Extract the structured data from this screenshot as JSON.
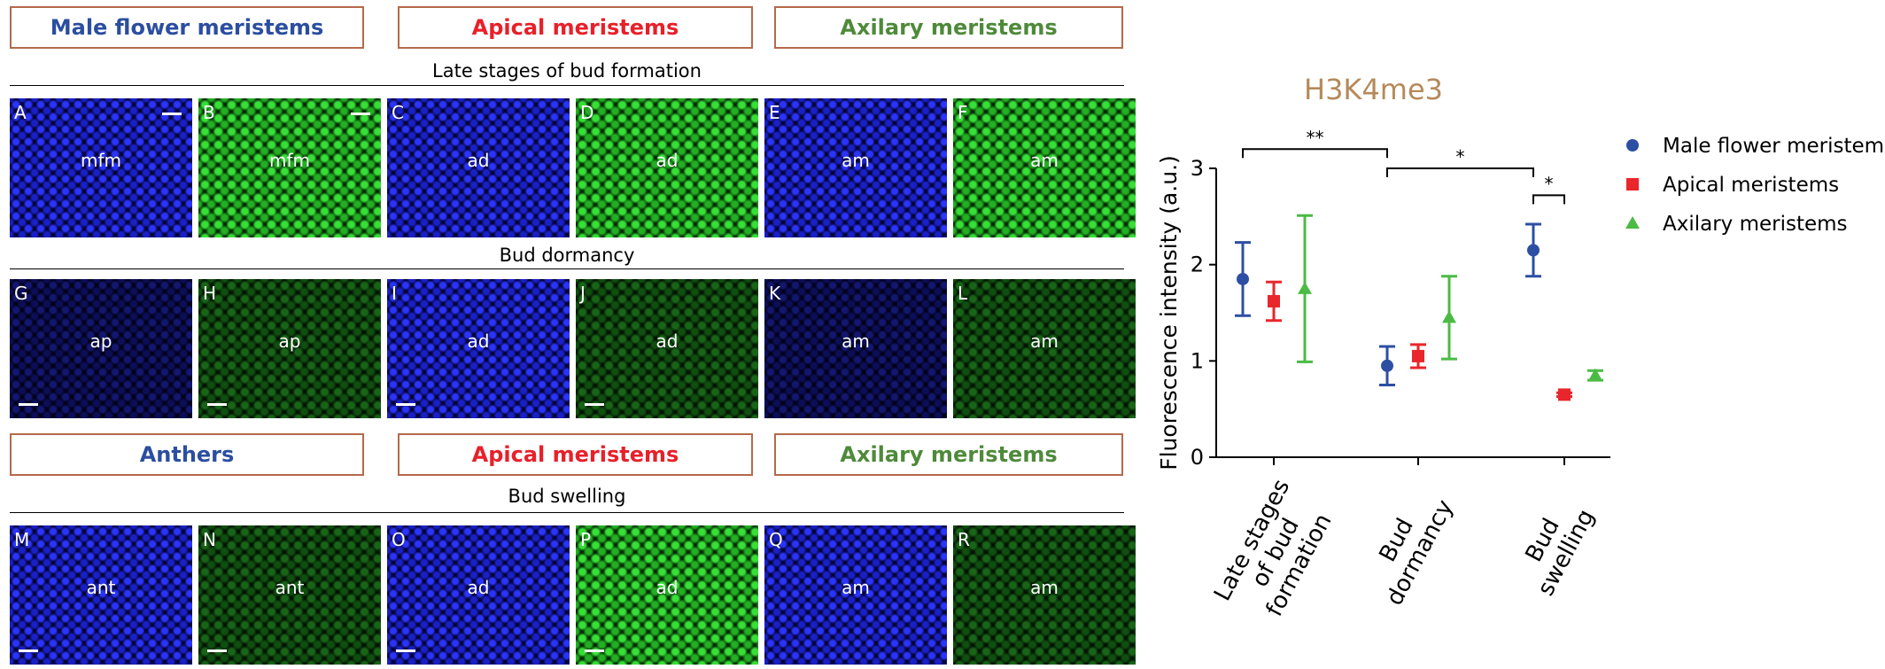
{
  "figure": {
    "rows": [
      {
        "headers": [
          "Male flower meristems",
          "Apical meristems",
          "Axilary meristems"
        ],
        "stage": "Late stages of bud formation",
        "panels": [
          {
            "letter": "A",
            "label": "mfm"
          },
          {
            "letter": "B",
            "label": "mfm"
          },
          {
            "letter": "C",
            "label": "ad"
          },
          {
            "letter": "D",
            "label": "ad"
          },
          {
            "letter": "E",
            "label": "am"
          },
          {
            "letter": "F",
            "label": "am"
          }
        ]
      },
      {
        "stage": "Bud dormancy",
        "panels": [
          {
            "letter": "G",
            "label": "ap"
          },
          {
            "letter": "H",
            "label": "ap"
          },
          {
            "letter": "I",
            "label": "ad"
          },
          {
            "letter": "J",
            "label": "ad"
          },
          {
            "letter": "K",
            "label": "am"
          },
          {
            "letter": "L",
            "label": "am"
          }
        ]
      },
      {
        "headers": [
          "Anthers",
          "Apical meristems",
          "Axilary meristems"
        ],
        "stage": "Bud swelling",
        "panels": [
          {
            "letter": "M",
            "label": "ant"
          },
          {
            "letter": "N",
            "label": "ant"
          },
          {
            "letter": "O",
            "label": "ad"
          },
          {
            "letter": "P",
            "label": "ad"
          },
          {
            "letter": "Q",
            "label": "am"
          },
          {
            "letter": "R",
            "label": "am"
          }
        ]
      }
    ]
  },
  "chart_data": {
    "type": "errorpoint",
    "title": "H3K4me3",
    "y_label": "Fluorescence intensity (a.u.)",
    "categories": [
      "Late stages of bud formation",
      "Bud dormancy",
      "Bud swelling"
    ],
    "series": [
      {
        "name": "Male flower meristems",
        "color": "#2d4fa3",
        "marker": "circle",
        "values": [
          1.85,
          0.95,
          2.15
        ],
        "errors": [
          0.38,
          0.2,
          0.27
        ]
      },
      {
        "name": "Apical meristems",
        "color": "#e8262b",
        "marker": "square",
        "values": [
          1.62,
          1.05,
          0.65
        ],
        "errors": [
          0.2,
          0.12,
          0.02
        ]
      },
      {
        "name": "Axilary meristems",
        "color": "#4bbb44",
        "marker": "triangle",
        "values": [
          1.75,
          1.45,
          0.85
        ],
        "errors": [
          0.76,
          0.43,
          0.05
        ]
      }
    ],
    "ylim": [
      0,
      3
    ],
    "yticks": [
      0,
      1,
      2,
      3
    ],
    "significance": [
      {
        "text": "**",
        "from": [
          0,
          0
        ],
        "to": [
          1,
          0
        ],
        "y": 3.2
      },
      {
        "text": "*",
        "from": [
          1,
          0
        ],
        "to": [
          2,
          0
        ],
        "y": 3.0
      },
      {
        "text": "*",
        "from": [
          2,
          0
        ],
        "to": [
          2,
          1
        ],
        "y": 2.72
      }
    ]
  }
}
